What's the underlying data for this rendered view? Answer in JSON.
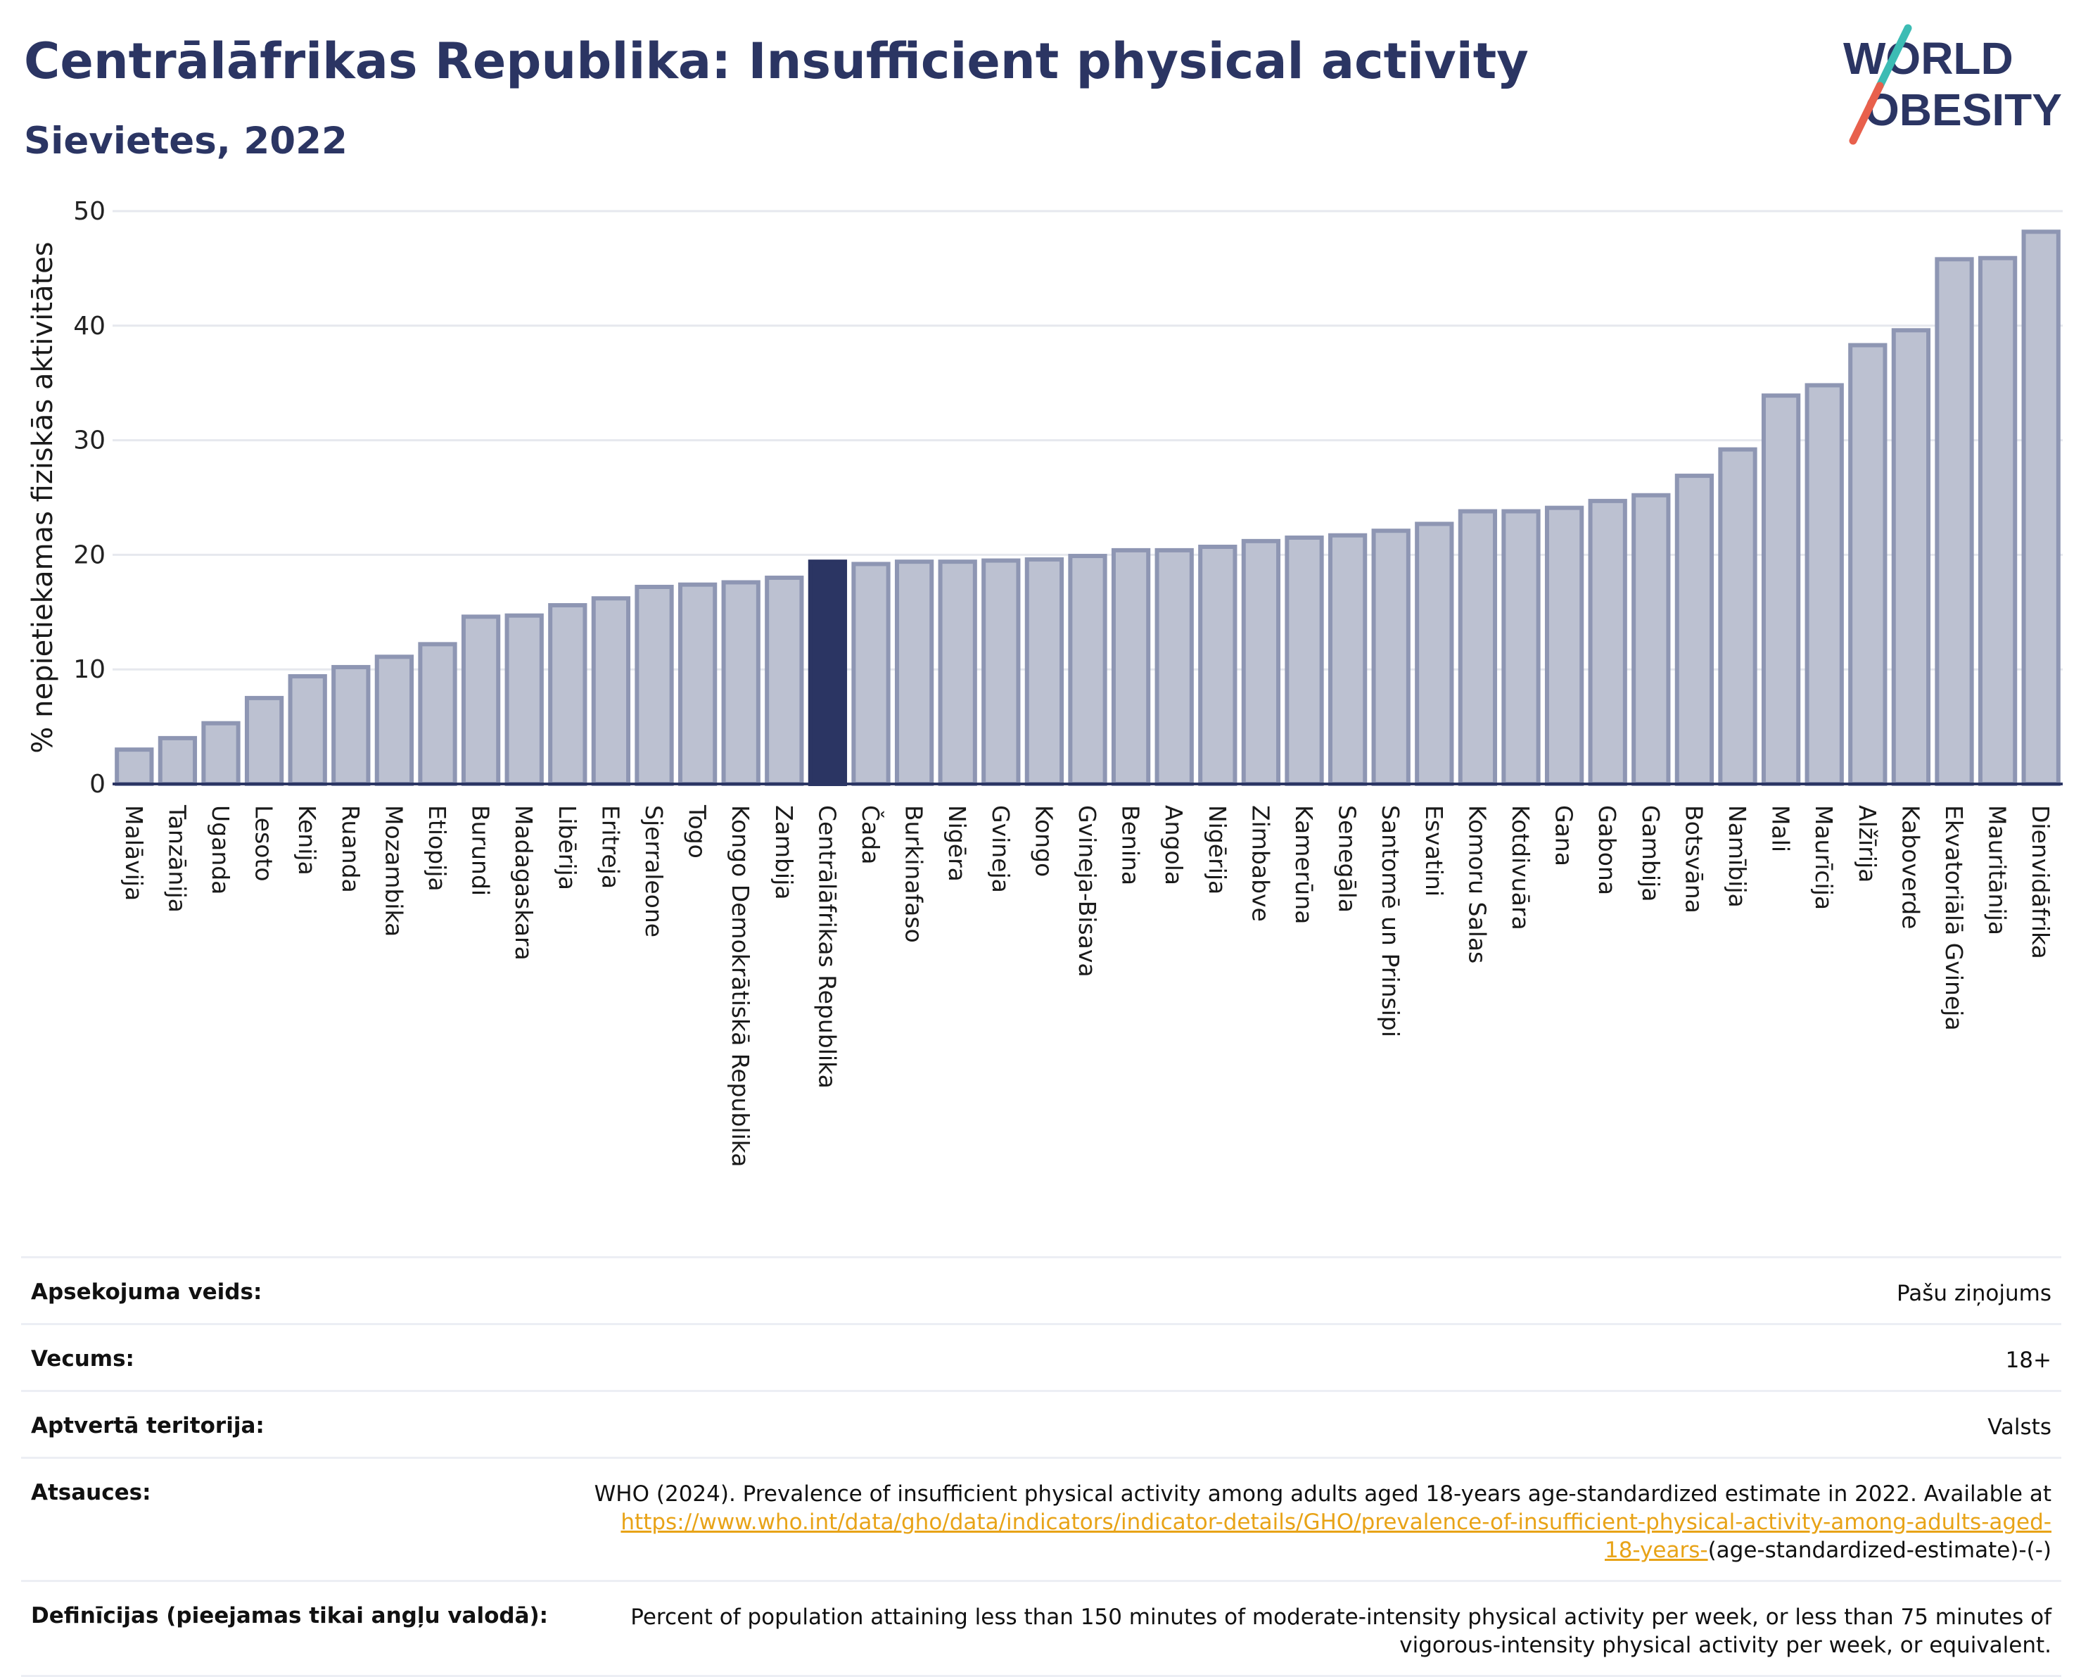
{
  "header": {
    "title": "Centrālāfrikas Republika: Insufficient physical activity",
    "subtitle": "Sievietes, 2022"
  },
  "logo": {
    "line1": "WORLD",
    "line2": "OBESITY"
  },
  "colors": {
    "bar": "#bcc1d1",
    "bar_stroke": "#8e96b3",
    "highlight": "#2b3563",
    "title": "#2b3563",
    "link": "#e8a317"
  },
  "chart_data": {
    "type": "bar",
    "title": "Centrālāfrikas Republika: Insufficient physical activity",
    "subtitle": "Sievietes, 2022",
    "xlabel": "",
    "ylabel": "% nepietiekamas fiziskās aktivitātes",
    "ylim": [
      0,
      50
    ],
    "yticks": [
      0,
      10,
      20,
      30,
      40,
      50
    ],
    "grid": true,
    "highlight": "Centrālāfrikas Republika",
    "categories": [
      "Malāvija",
      "Tanzānija",
      "Uganda",
      "Lesoto",
      "Kenija",
      "Ruanda",
      "Mozambika",
      "Etiopija",
      "Burundi",
      "Madagaskara",
      "Libērija",
      "Eritreja",
      "Sjerraleone",
      "Togo",
      "Kongo Demokrātiskā Republika",
      "Zambija",
      "Centrālāfrikas Republika",
      "Čada",
      "Burkinafaso",
      "Nigēra",
      "Gvineja",
      "Kongo",
      "Gvineja-Bisava",
      "Benina",
      "Angola",
      "Nigērija",
      "Zimbabve",
      "Kamerūna",
      "Senegāla",
      "Santomē un Prinsipi",
      "Esvatini",
      "Komoru Salas",
      "Kotdivuāra",
      "Gana",
      "Gabona",
      "Gambija",
      "Botsvāna",
      "Namībija",
      "Mali",
      "Maurīcija",
      "Alžīrija",
      "Kaboverde",
      "Ekvatoriālā Gvineja",
      "Mauritānija",
      "Dienvidāfrika"
    ],
    "values": [
      3.0,
      4.0,
      5.3,
      7.5,
      9.4,
      10.2,
      11.1,
      12.2,
      14.6,
      14.7,
      15.6,
      16.2,
      17.2,
      17.4,
      17.6,
      18.0,
      19.4,
      19.2,
      19.4,
      19.4,
      19.5,
      19.6,
      19.9,
      20.4,
      20.4,
      20.7,
      21.2,
      21.5,
      21.7,
      22.1,
      22.7,
      23.8,
      23.8,
      24.1,
      24.7,
      25.2,
      26.9,
      29.2,
      33.9,
      34.8,
      38.3,
      39.6,
      45.8,
      45.9,
      48.2
    ]
  },
  "info": {
    "rows": [
      {
        "label": "Apsekojuma veids:",
        "value": "Pašu ziņojums"
      },
      {
        "label": "Vecums:",
        "value": "18+"
      },
      {
        "label": "Aptvertā teritorija:",
        "value": "Valsts"
      }
    ],
    "sources": {
      "label": "Atsauces:",
      "text": "WHO (2024). Prevalence of insufficient physical activity among adults aged 18-years age-standardized estimate in 2022. Available at",
      "link": "https://www.who.int/data/gho/data/indicators/indicator-details/GHO/prevalence-of-insufficient-physical-activity-among-adults-aged-18-years-",
      "suffix": "(age-standardized-estimate)-(-)"
    },
    "definitions": {
      "label": "Definīcijas (pieejamas tikai angļu valodā):",
      "value": "Percent of population attaining less than 150 minutes of moderate-intensity physical activity per week, or less than 75 minutes of vigorous-intensity physical activity per week, or equivalent."
    }
  }
}
